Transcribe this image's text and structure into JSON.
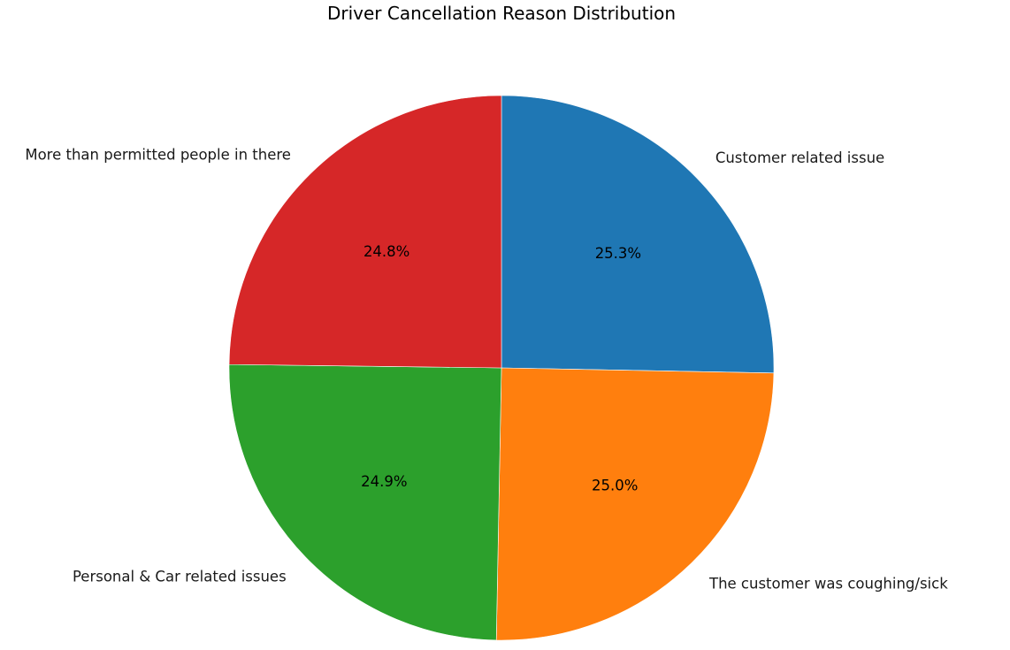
{
  "chart_data": {
    "type": "pie",
    "title": "Driver Cancellation Reason Distribution",
    "start_angle_deg": 90,
    "direction": "clockwise",
    "slices": [
      {
        "label": "Customer related issue",
        "value": 25.3,
        "pct_label": "25.3%",
        "color": "#1f77b4"
      },
      {
        "label": "The customer was coughing/sick",
        "value": 25.0,
        "pct_label": "25.0%",
        "color": "#ff7f0e"
      },
      {
        "label": "Personal & Car related issues",
        "value": 24.9,
        "pct_label": "24.9%",
        "color": "#2ca02c"
      },
      {
        "label": "More than permitted people in there",
        "value": 24.8,
        "pct_label": "24.8%",
        "color": "#d62728"
      }
    ]
  }
}
